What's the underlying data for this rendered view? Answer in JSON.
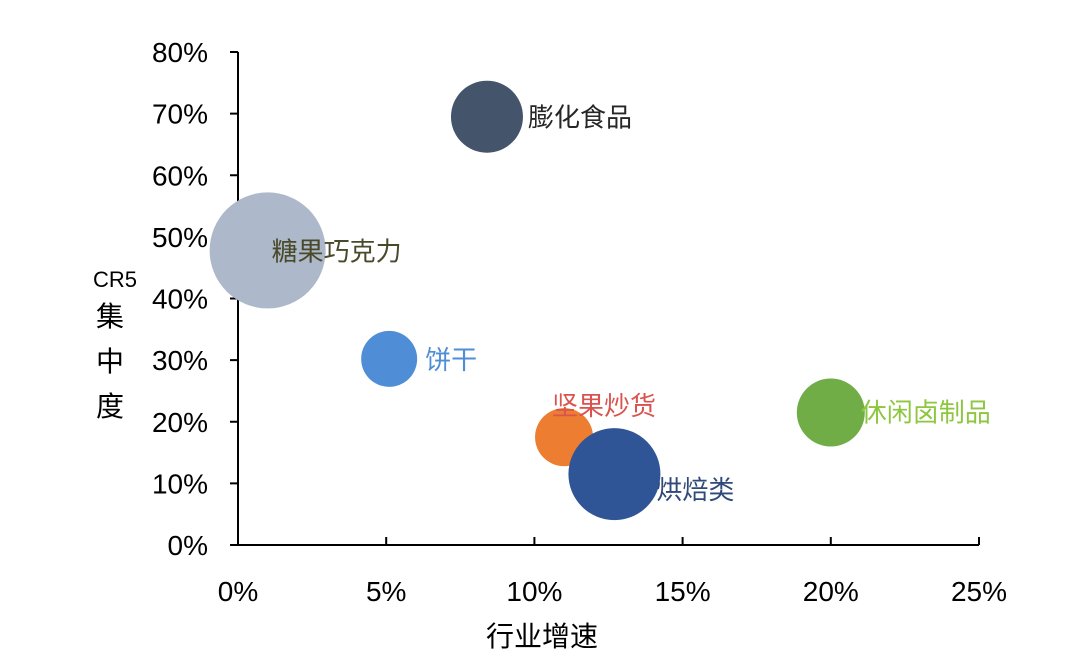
{
  "chart_data": {
    "type": "bubble",
    "xlabel": "行业增速",
    "ylabel_prefix": "CR5",
    "ylabel": "集中度",
    "xlim": [
      0,
      0.25
    ],
    "ylim": [
      0,
      0.8
    ],
    "x_ticks": [
      "0%",
      "5%",
      "10%",
      "15%",
      "20%",
      "25%"
    ],
    "y_ticks": [
      "0%",
      "10%",
      "20%",
      "30%",
      "40%",
      "50%",
      "60%",
      "70%",
      "80%"
    ],
    "x_tick_values": [
      0,
      0.05,
      0.1,
      0.15,
      0.2,
      0.25
    ],
    "y_tick_values": [
      0,
      0.1,
      0.2,
      0.3,
      0.4,
      0.5,
      0.6,
      0.7,
      0.8
    ],
    "points": [
      {
        "name": "膨化食品",
        "x": 0.084,
        "y": 0.695,
        "size": 36,
        "color": "#44546A",
        "label_color": "#262626"
      },
      {
        "name": "糖果巧克力",
        "x": 0.01,
        "y": 0.478,
        "size": 58,
        "color": "#ADB9CA",
        "label_color": "#4A4A2A"
      },
      {
        "name": "饼干",
        "x": 0.051,
        "y": 0.302,
        "size": 28,
        "color": "#4F8ED6",
        "label_color": "#4F8ED6"
      },
      {
        "name": "坚果炒货",
        "x": 0.11,
        "y": 0.175,
        "size": 29,
        "color": "#ED7D31",
        "label_color": "#D9534F"
      },
      {
        "name": "烘焙类",
        "x": 0.127,
        "y": 0.115,
        "size": 46,
        "color": "#2F5597",
        "label_color": "#2F4A7A"
      },
      {
        "name": "休闲卤制品",
        "x": 0.2,
        "y": 0.215,
        "size": 34,
        "color": "#70AD47",
        "label_color": "#8DC63F"
      }
    ]
  }
}
